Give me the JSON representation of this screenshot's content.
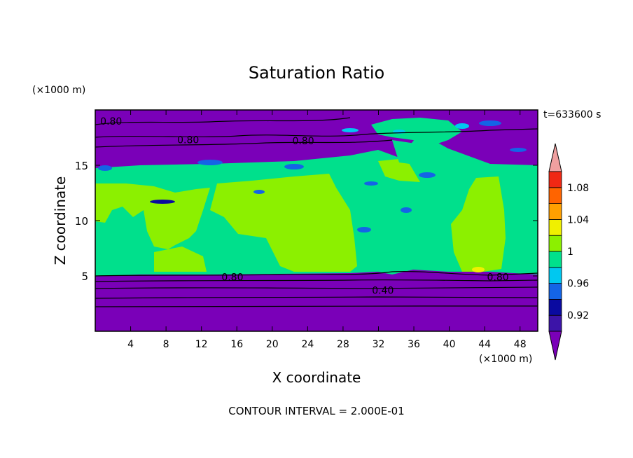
{
  "chart_data": {
    "type": "heatmap",
    "title": "Saturation Ratio",
    "xlabel": "X coordinate",
    "ylabel": "Z coordinate",
    "x_unit": "(×1000 m)",
    "y_unit": "(×1000 m)",
    "time_label": "t=633600 s",
    "footer": "CONTOUR INTERVAL = 2.000E-01",
    "xlim": [
      0,
      50
    ],
    "ylim": [
      0,
      20
    ],
    "x_ticks": [
      "4",
      "8",
      "12",
      "16",
      "20",
      "24",
      "28",
      "32",
      "36",
      "40",
      "44",
      "48"
    ],
    "x_tick_values": [
      4,
      8,
      12,
      16,
      20,
      24,
      28,
      32,
      36,
      40,
      44,
      48
    ],
    "y_ticks": [
      "5",
      "10",
      "15"
    ],
    "y_tick_values": [
      5,
      10,
      15
    ],
    "colorbar": {
      "labels": [
        "0.92",
        "0.96",
        "1",
        "1.04",
        "1.08"
      ],
      "colors": [
        "#7a00b8",
        "#3c14a8",
        "#0a0aa0",
        "#1464e6",
        "#00c8f0",
        "#00e08c",
        "#8cf000",
        "#f0f000",
        "#ffa000",
        "#ff6400",
        "#f02814",
        "#f0a0a0"
      ]
    },
    "contour_labels": [
      {
        "text": "0.80",
        "x": 1.8,
        "z": 19.0
      },
      {
        "text": "0.80",
        "x": 10.5,
        "z": 17.3
      },
      {
        "text": "0.80",
        "x": 23.5,
        "z": 17.2
      },
      {
        "text": "0.80",
        "x": 15.5,
        "z": 4.9
      },
      {
        "text": "0.40",
        "x": 32.5,
        "z": 3.7
      },
      {
        "text": "0.80",
        "x": 45.5,
        "z": 4.9
      }
    ]
  }
}
